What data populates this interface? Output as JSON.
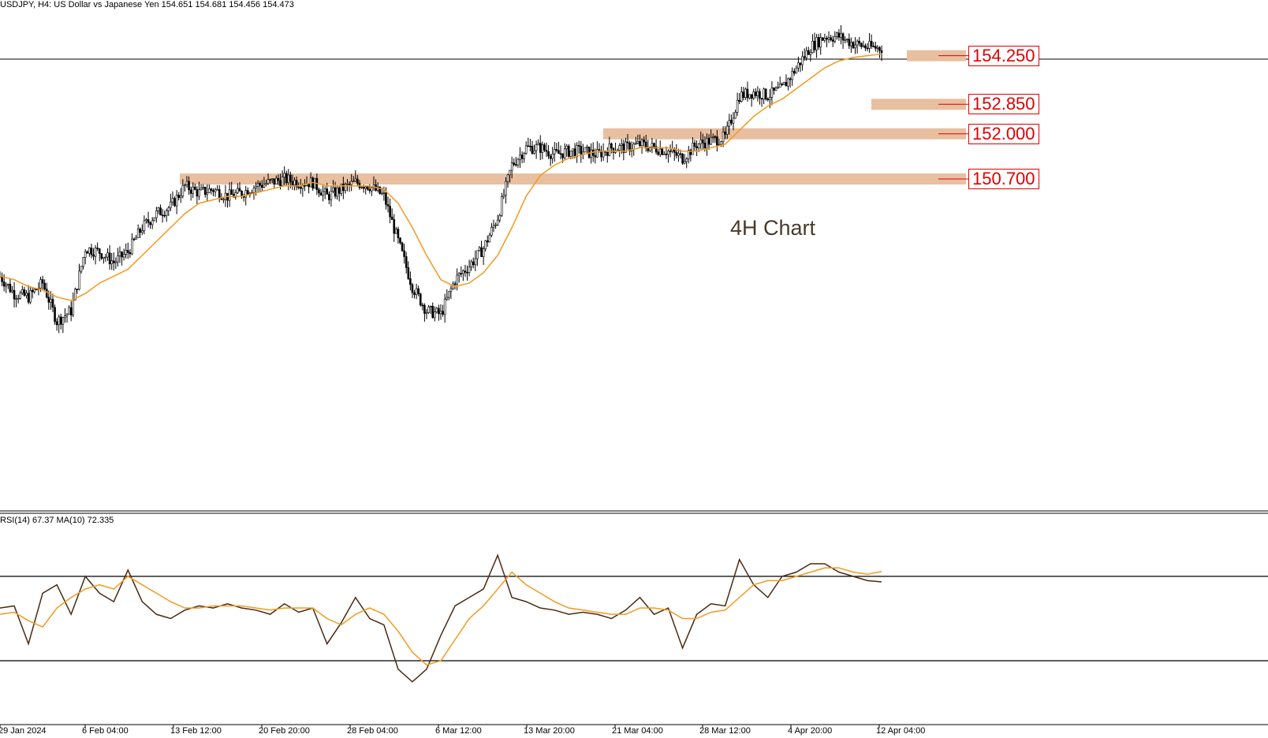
{
  "header": {
    "symbol_line": "USDJPY, H4:  US Dollar vs Japanese Yen  154.651 154.681 154.456 154.473",
    "rsi_line": "RSI(14) 67.37 MA(10) 72.335"
  },
  "annotation": "4H Chart",
  "colors": {
    "candle": "#000000",
    "ma": "#f39a1e",
    "zone": "#e8bfa0",
    "label": "#e00000",
    "rsi": "#4a2a10",
    "rsi_ma": "#f39a1e"
  },
  "levels": [
    {
      "label": "154.250",
      "value": 154.25
    },
    {
      "label": "152.850",
      "value": 152.85
    },
    {
      "label": "152.000",
      "value": 152.0
    },
    {
      "label": "150.700",
      "value": 150.7
    }
  ],
  "x_ticks": [
    "29 Jan 2024",
    "6 Feb 04:00",
    "13 Feb 12:00",
    "20 Feb 20:00",
    "28 Feb 04:00",
    "6 Mar 12:00",
    "13 Mar 20:00",
    "21 Mar 04:00",
    "28 Mar 12:00",
    "4 Apr 20:00",
    "12 Apr 04:00"
  ],
  "chart_data": [
    {
      "type": "line",
      "title": "USDJPY, H4",
      "x_ticks": [
        "29 Jan 2024",
        "6 Feb 04:00",
        "13 Feb 12:00",
        "20 Feb 20:00",
        "28 Feb 04:00",
        "6 Mar 12:00",
        "13 Mar 20:00",
        "21 Mar 04:00",
        "28 Mar 12:00",
        "4 Apr 20:00",
        "12 Apr 04:00"
      ],
      "ylim": [
        144.5,
        155.4
      ],
      "series": [
        {
          "name": "USDJPY close",
          "x": [
            0,
            7,
            14,
            21,
            28,
            35,
            42,
            49,
            56,
            63,
            70,
            77,
            84,
            91,
            98,
            105,
            112,
            119,
            126,
            133,
            140,
            147,
            154,
            161,
            168,
            175,
            182,
            189,
            196,
            203,
            210,
            217,
            224,
            231,
            238,
            245,
            252,
            259,
            266,
            273,
            280,
            287,
            294,
            301,
            308,
            315,
            322,
            329,
            336,
            343,
            350,
            357,
            364,
            371,
            378,
            385,
            392,
            399,
            406,
            413,
            420,
            427,
            434
          ],
          "values": [
            147.9,
            147.4,
            147.3,
            147.7,
            146.6,
            146.9,
            148.7,
            148.6,
            148.3,
            148.6,
            149.3,
            149.7,
            149.9,
            150.5,
            150.3,
            150.4,
            150.2,
            150.3,
            150.5,
            150.6,
            150.7,
            150.6,
            150.6,
            150.2,
            150.4,
            150.6,
            150.5,
            150.2,
            148.9,
            147.6,
            146.9,
            146.8,
            147.8,
            148.2,
            148.7,
            149.6,
            151.1,
            151.6,
            151.6,
            151.4,
            151.5,
            151.5,
            151.4,
            151.6,
            151.6,
            151.7,
            151.6,
            151.5,
            151.3,
            151.7,
            151.8,
            151.9,
            153.1,
            153.2,
            153.1,
            153.3,
            153.9,
            154.5,
            154.8,
            154.8,
            154.6,
            154.5,
            154.47
          ]
        },
        {
          "name": "MA",
          "x": [
            0,
            7,
            14,
            21,
            28,
            35,
            42,
            49,
            56,
            63,
            70,
            77,
            84,
            91,
            98,
            105,
            112,
            119,
            126,
            133,
            140,
            147,
            154,
            161,
            168,
            175,
            182,
            189,
            196,
            203,
            210,
            217,
            224,
            231,
            238,
            245,
            252,
            259,
            266,
            273,
            280,
            287,
            294,
            301,
            308,
            315,
            322,
            329,
            336,
            343,
            350,
            357,
            364,
            371,
            378,
            385,
            392,
            399,
            406,
            413,
            420,
            427,
            434
          ],
          "values": [
            147.9,
            147.8,
            147.6,
            147.5,
            147.3,
            147.2,
            147.4,
            147.7,
            147.9,
            148.1,
            148.5,
            148.9,
            149.3,
            149.7,
            150.0,
            150.1,
            150.2,
            150.2,
            150.3,
            150.4,
            150.5,
            150.5,
            150.6,
            150.5,
            150.5,
            150.5,
            150.5,
            150.4,
            150.0,
            149.3,
            148.5,
            147.8,
            147.6,
            147.7,
            148.0,
            148.5,
            149.3,
            150.2,
            150.8,
            151.1,
            151.3,
            151.4,
            151.5,
            151.5,
            151.5,
            151.6,
            151.6,
            151.6,
            151.5,
            151.5,
            151.6,
            151.7,
            152.1,
            152.5,
            152.8,
            153.0,
            153.3,
            153.6,
            153.9,
            154.1,
            154.2,
            154.25,
            154.3
          ]
        }
      ]
    },
    {
      "type": "line",
      "title": "RSI(14) 67.37 MA(10) 72.335",
      "ylim": [
        0,
        100
      ],
      "reference_lines": [
        70,
        30
      ],
      "series": [
        {
          "name": "RSI(14)",
          "x": [
            0,
            7,
            14,
            21,
            28,
            35,
            42,
            49,
            56,
            63,
            70,
            77,
            84,
            91,
            98,
            105,
            112,
            119,
            126,
            133,
            140,
            147,
            154,
            161,
            168,
            175,
            182,
            189,
            196,
            203,
            210,
            217,
            224,
            231,
            238,
            245,
            252,
            259,
            266,
            273,
            280,
            287,
            294,
            301,
            308,
            315,
            322,
            329,
            336,
            343,
            350,
            357,
            364,
            371,
            378,
            385,
            392,
            399,
            406,
            413,
            420,
            427,
            434
          ],
          "values": [
            55,
            56,
            38,
            62,
            66,
            52,
            70,
            62,
            58,
            73,
            58,
            52,
            50,
            54,
            56,
            55,
            57,
            55,
            54,
            52,
            57,
            53,
            55,
            38,
            48,
            60,
            50,
            47,
            26,
            20,
            26,
            42,
            56,
            60,
            64,
            80,
            60,
            58,
            55,
            54,
            52,
            53,
            52,
            50,
            54,
            60,
            52,
            55,
            36,
            52,
            57,
            56,
            78,
            66,
            60,
            70,
            72,
            76,
            76,
            72,
            70,
            68,
            67.37
          ]
        },
        {
          "name": "MA(10)",
          "x": [
            0,
            7,
            14,
            21,
            28,
            35,
            42,
            49,
            56,
            63,
            70,
            77,
            84,
            91,
            98,
            105,
            112,
            119,
            126,
            133,
            140,
            147,
            154,
            161,
            168,
            175,
            182,
            189,
            196,
            203,
            210,
            217,
            224,
            231,
            238,
            245,
            252,
            259,
            266,
            273,
            280,
            287,
            294,
            301,
            308,
            315,
            322,
            329,
            336,
            343,
            350,
            357,
            364,
            371,
            378,
            385,
            392,
            399,
            406,
            413,
            420,
            427,
            434
          ],
          "values": [
            52,
            53,
            49,
            46,
            55,
            60,
            64,
            66,
            64,
            70,
            66,
            62,
            58,
            55,
            55,
            56,
            56,
            56,
            55,
            54,
            55,
            55,
            55,
            50,
            47,
            52,
            55,
            52,
            44,
            34,
            28,
            30,
            40,
            50,
            56,
            64,
            72,
            66,
            62,
            58,
            55,
            54,
            53,
            52,
            52,
            55,
            55,
            54,
            50,
            50,
            53,
            54,
            60,
            66,
            68,
            68,
            70,
            72,
            74,
            74,
            72,
            71,
            72.335
          ]
        }
      ]
    }
  ]
}
